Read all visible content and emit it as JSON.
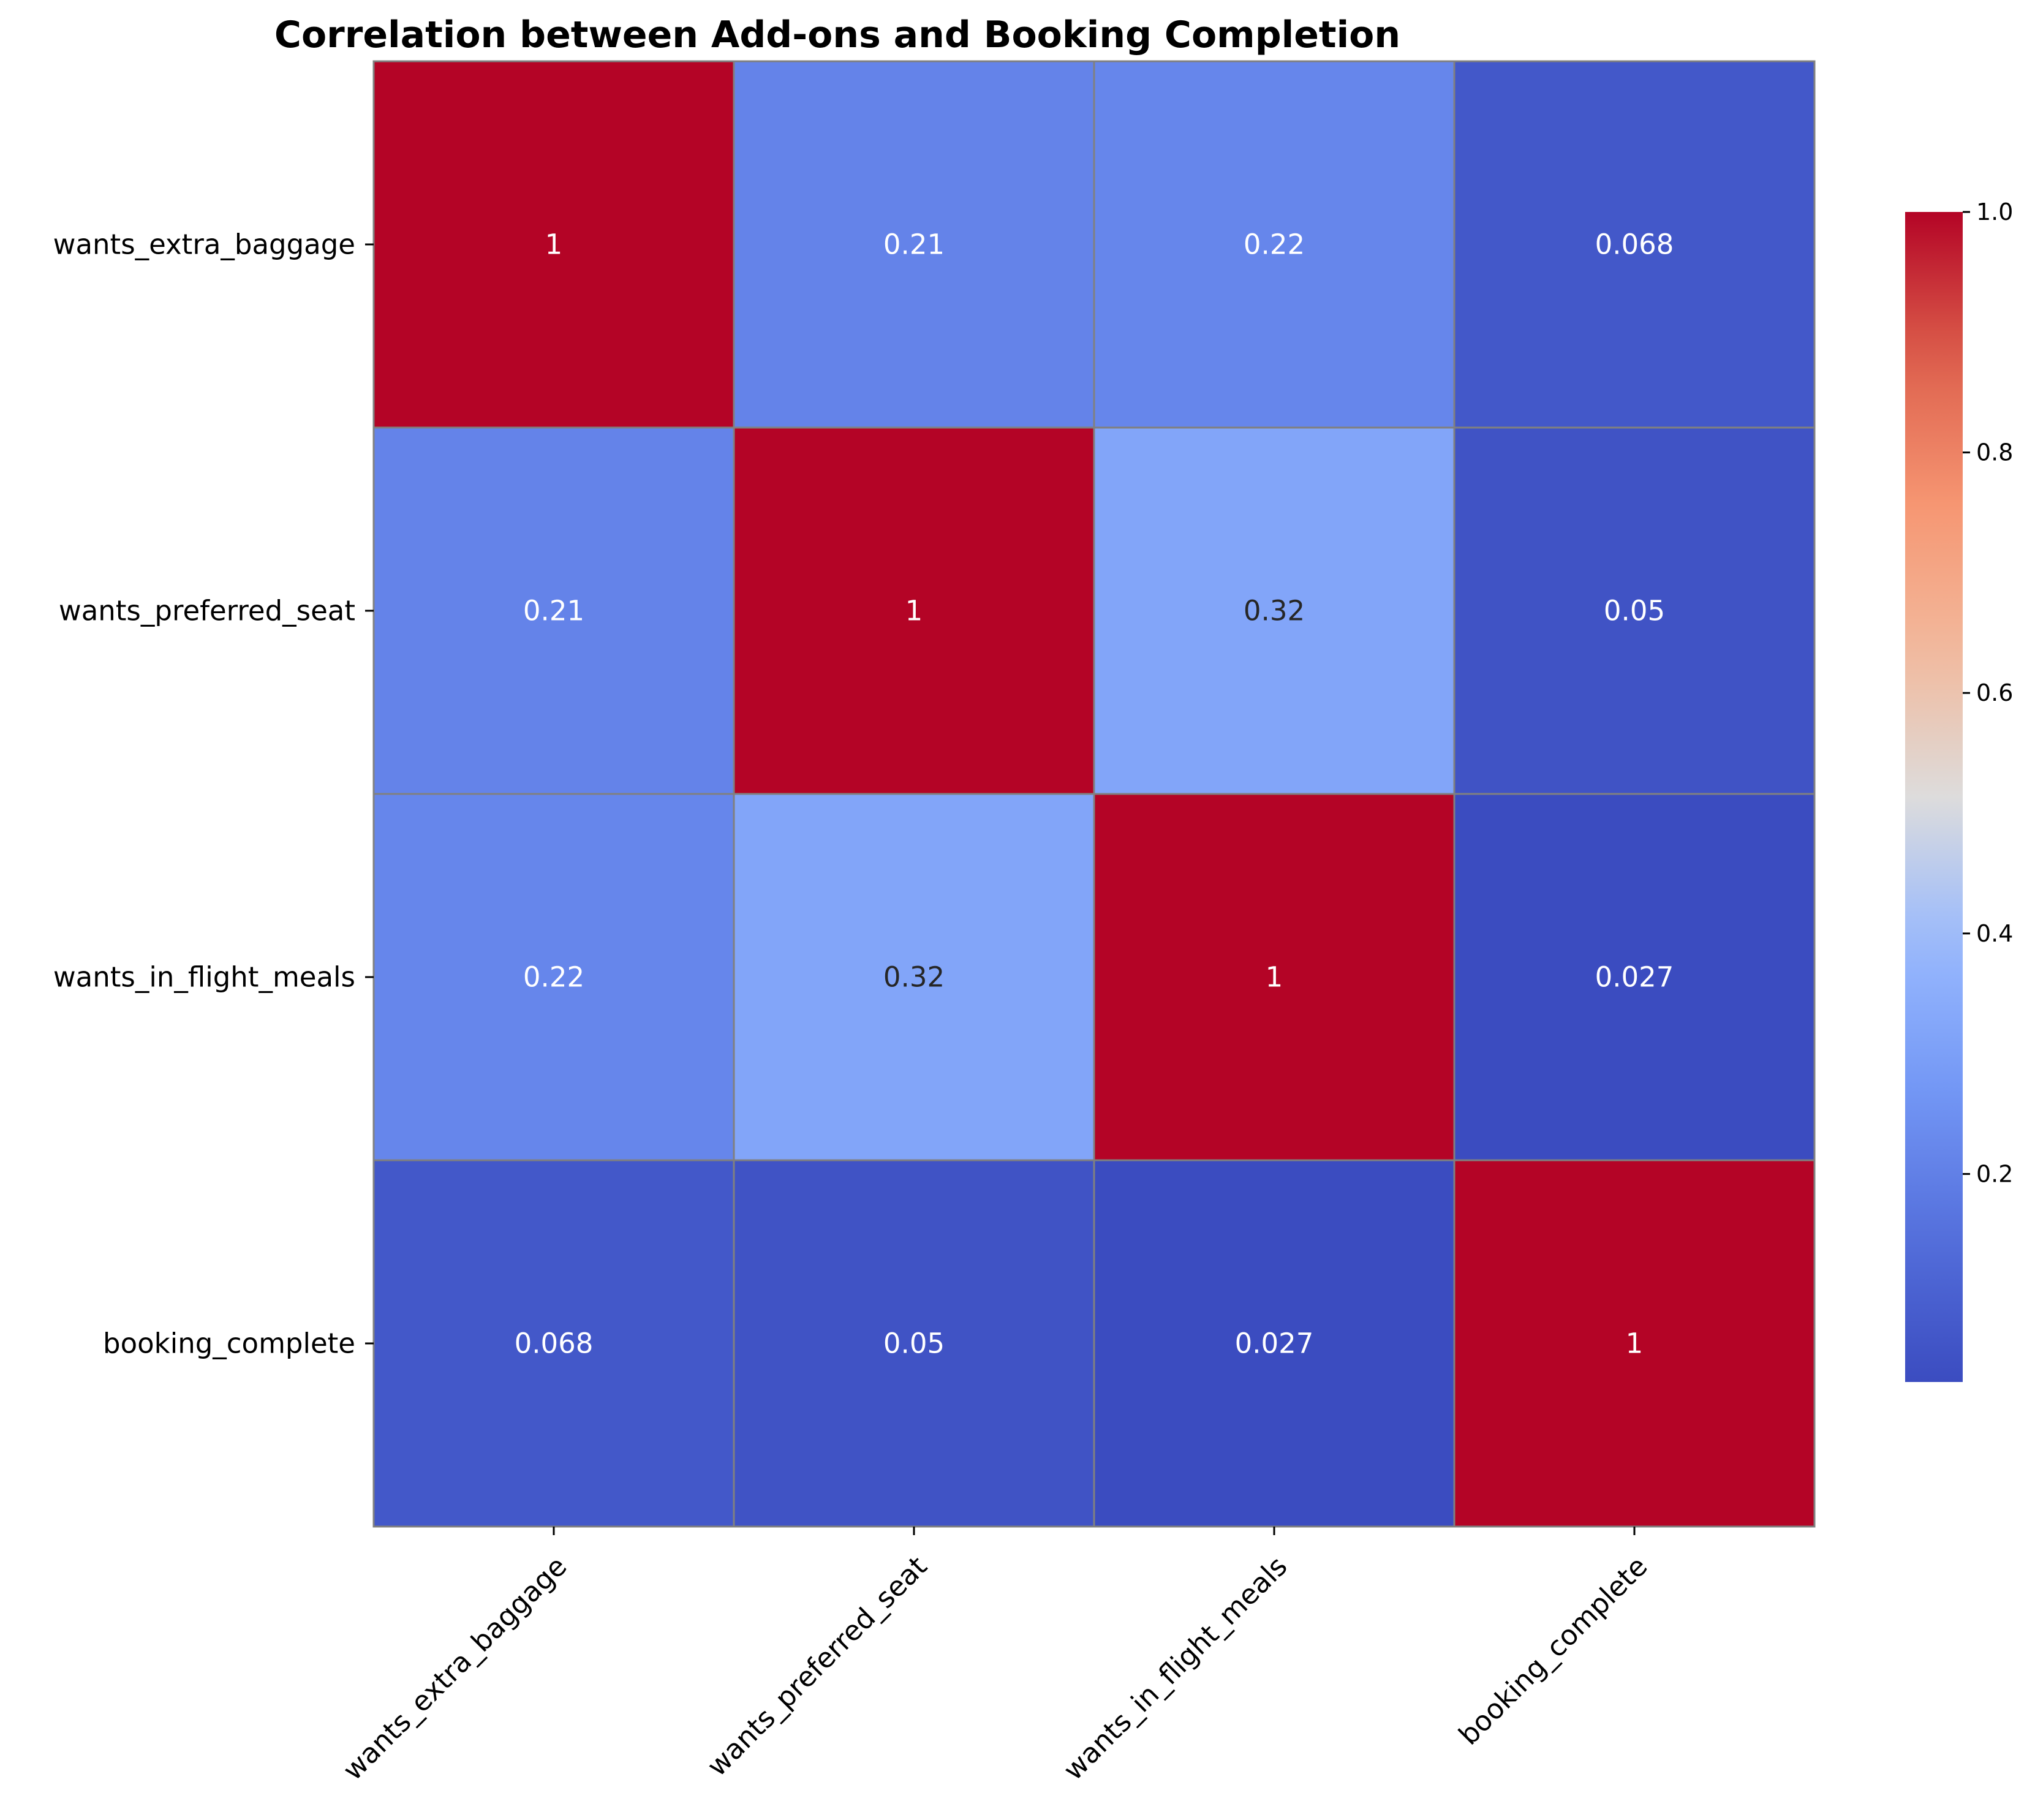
{
  "chart_data": {
    "type": "heatmap",
    "title": "Correlation between Add-ons and Booking Completion",
    "xlabel": "",
    "ylabel": "",
    "rows": [
      "wants_extra_baggage",
      "wants_preferred_seat",
      "wants_in_flight_meals",
      "booking_complete"
    ],
    "columns": [
      "wants_extra_baggage",
      "wants_preferred_seat",
      "wants_in_flight_meals",
      "booking_complete"
    ],
    "values": [
      [
        1,
        0.21,
        0.22,
        0.068
      ],
      [
        0.21,
        1,
        0.32,
        0.05
      ],
      [
        0.22,
        0.32,
        1,
        0.027
      ],
      [
        0.068,
        0.05,
        0.027,
        1
      ]
    ],
    "annotations": [
      [
        "1",
        "0.21",
        "0.22",
        "0.068"
      ],
      [
        "0.21",
        "1",
        "0.32",
        "0.05"
      ],
      [
        "0.22",
        "0.32",
        "1",
        "0.027"
      ],
      [
        "0.068",
        "0.05",
        "0.027",
        "1"
      ]
    ],
    "colormap": "coolwarm",
    "color_range": [
      0.027,
      1.0
    ],
    "colorbar": {
      "ticks": [
        0.2,
        0.4,
        0.6,
        0.8,
        1.0
      ],
      "tick_labels": [
        "0.2",
        "0.4",
        "0.6",
        "0.8",
        "1.0"
      ],
      "placement": "right"
    },
    "cell_border_color": "#808080",
    "x_tick_rotation_deg": 45
  }
}
